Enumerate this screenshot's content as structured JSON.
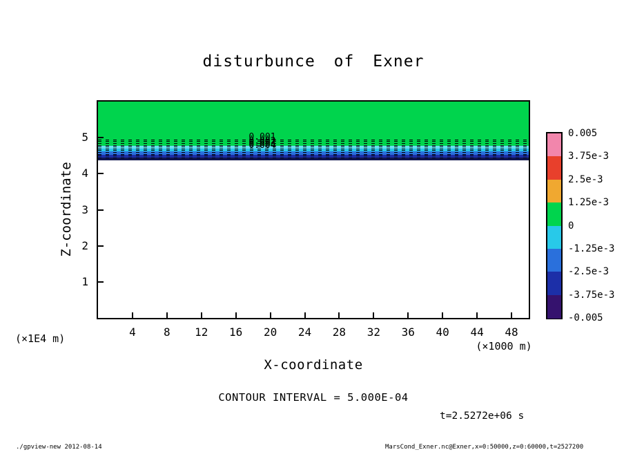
{
  "title": "disturbunce of Exner",
  "plot": {
    "x_axis": {
      "label": "X-coordinate",
      "unit_label": "(×1000 m)",
      "ticks": [
        "4",
        "8",
        "12",
        "16",
        "20",
        "24",
        "28",
        "32",
        "36",
        "40",
        "44",
        "48"
      ],
      "range": [
        0,
        50
      ]
    },
    "y_axis": {
      "label": "Z-coordinate",
      "unit_label": "(×1E4 m)",
      "ticks": [
        "1",
        "2",
        "3",
        "4",
        "5"
      ],
      "range": [
        0,
        6
      ]
    },
    "contour_labels": [
      "0.001",
      "0.002",
      "0.003",
      "0.004"
    ]
  },
  "colorbar": {
    "tick_labels": [
      "0.005",
      "3.75e-3",
      "2.5e-3",
      "1.25e-3",
      "0",
      "-1.25e-3",
      "-2.5e-3",
      "-3.75e-3",
      "-0.005"
    ],
    "segment_colors": [
      "#f286ac",
      "#e8402c",
      "#f0a830",
      "#00d44d",
      "#28c9e9",
      "#2a70dc",
      "#1c2fa8",
      "#35126e"
    ]
  },
  "annotations": {
    "contour_interval": "CONTOUR INTERVAL = 5.000E-04",
    "time": "t=2.5272e+06 s"
  },
  "footer": {
    "left": "./gpview-new  2012-08-14",
    "right": "MarsCond_Exner.nc@Exner,x=0:50000,z=0:60000,t=2527200"
  },
  "chart_data": {
    "type": "heatmap",
    "title": "disturbunce of Exner",
    "xlabel": "X-coordinate (×1000 m)",
    "ylabel": "Z-coordinate (×1E4 m)",
    "xlim": [
      0,
      50
    ],
    "ylim": [
      0,
      6
    ],
    "contour_interval": 0.0005,
    "levels": [
      -0.005,
      -0.00375,
      -0.0025,
      -0.00125,
      0,
      0.00125,
      0.0025,
      0.00375,
      0.005
    ],
    "description": "Exner function disturbance; horizontally uniform layered structure near z ≈ 4.5×10^4 m, near-zero (green) above, increasingly negative thin bands below, blank beneath",
    "bands": [
      {
        "z_from": 4.78,
        "z_to": 6.0,
        "value": "0 to 1.25e-3",
        "color": "#00d44d"
      },
      {
        "z_from": 4.7,
        "z_to": 4.78,
        "value": "0 to -1.25e-3",
        "color": "#66dff2"
      },
      {
        "z_from": 4.62,
        "z_to": 4.7,
        "value": "-1.25e-3",
        "color": "#28c9e9"
      },
      {
        "z_from": 4.53,
        "z_to": 4.62,
        "value": "-1.25e-3 to -2.5e-3",
        "color": "#2a70dc"
      },
      {
        "z_from": 4.44,
        "z_to": 4.53,
        "value": "-2.5e-3 to -3.75e-3",
        "color": "#1c2fa8"
      },
      {
        "z_from": 4.37,
        "z_to": 4.44,
        "value": "-3.75e-3 to -5e-3",
        "color": "#10154f"
      },
      {
        "z_from": 0.0,
        "z_to": 4.37,
        "value": "below range",
        "color": "#ffffff"
      }
    ],
    "dashed_contour_z": [
      4.95,
      4.9,
      4.85,
      4.8,
      4.75,
      4.7,
      4.65,
      4.6,
      4.55,
      4.5,
      4.45
    ],
    "contour_label_x": 17.5,
    "contour_label_z": [
      4.98,
      4.87,
      4.81,
      4.75
    ]
  }
}
